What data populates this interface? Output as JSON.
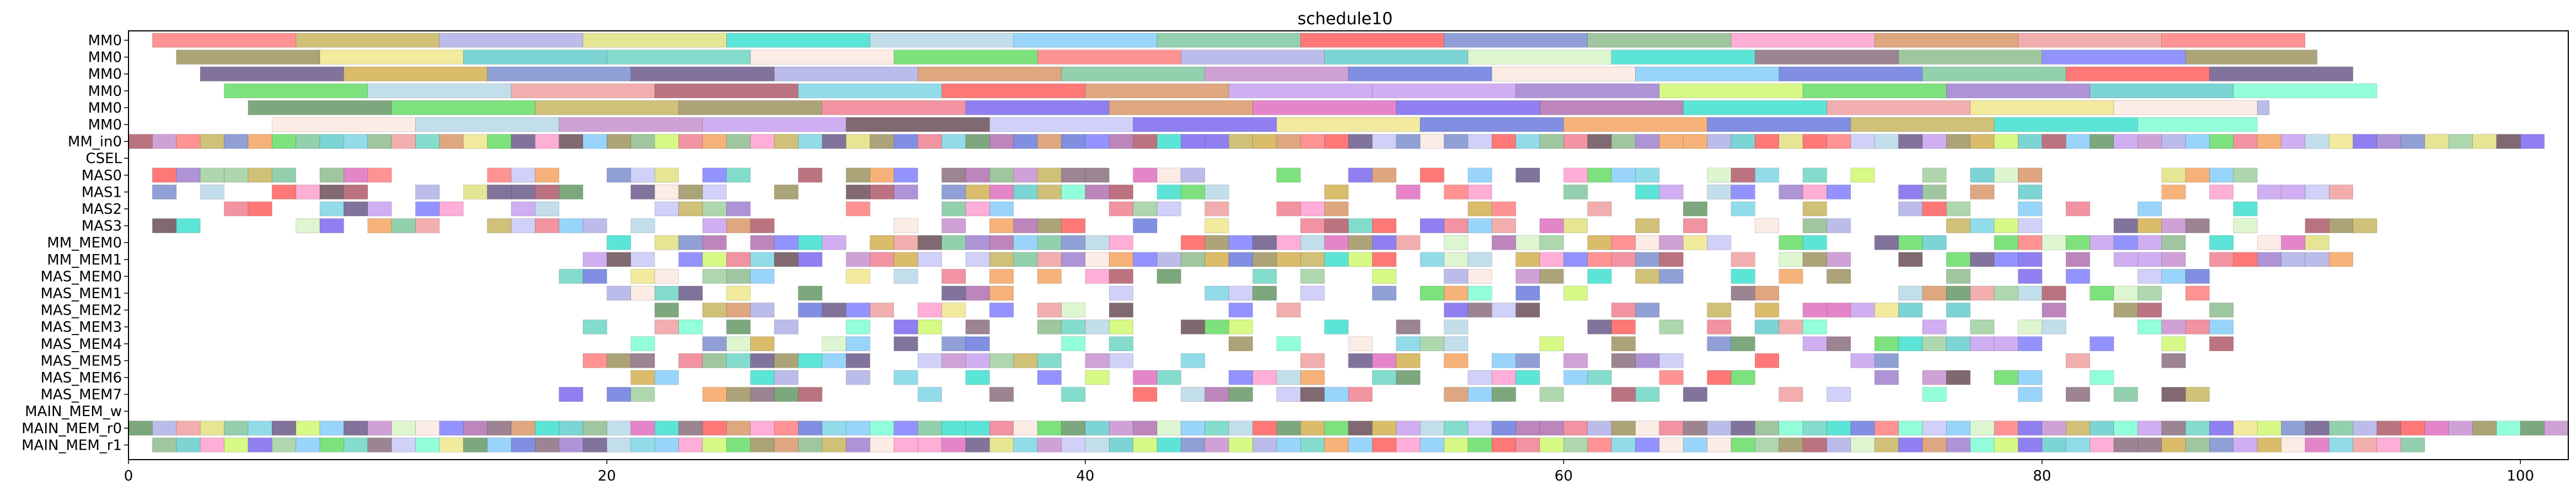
{
  "chart_data": {
    "type": "gantt",
    "title": "schedule10",
    "xlabel": "",
    "ylabel": "",
    "xlim": [
      0,
      102
    ],
    "x_ticks": [
      0,
      20,
      40,
      60,
      80,
      100
    ],
    "x_tick_labels": [
      "0",
      "20",
      "40",
      "60",
      "80",
      "100"
    ],
    "rows": [
      "MM0",
      "MM0",
      "MM0",
      "MM0",
      "MM0",
      "MM0",
      "MM_in0",
      "CSEL",
      "MAS0",
      "MAS1",
      "MAS2",
      "MAS3",
      "MM_MEM0",
      "MM_MEM1",
      "MAS_MEM0",
      "MAS_MEM1",
      "MAS_MEM2",
      "MAS_MEM3",
      "MAS_MEM4",
      "MAS_MEM5",
      "MAS_MEM6",
      "MAS_MEM7",
      "MAIN_MEM_w",
      "MAIN_MEM_r0",
      "MAIN_MEM_r1"
    ],
    "grid": false,
    "legend": "none"
  },
  "colors": {
    "palette": [
      "#f0e68c",
      "#8fbc8f",
      "#c8b560",
      "#6fd6c4",
      "#d8f5c8",
      "#b05a6a",
      "#9e9460",
      "#6b4f58",
      "#7fd6e6",
      "#fde8e0",
      "#c8c8f8",
      "#40e0d0",
      "#d0f870",
      "#c890d0",
      "#7c8fd0",
      "#d89868",
      "#f08090",
      "#f0a0a0",
      "#8b6f80",
      "#80c8a0",
      "#e070c0",
      "#b0b0e8",
      "#7fffd4",
      "#f4a460",
      "#7b68ee",
      "#ff8080",
      "#66dd66",
      "#87cefa",
      "#6a7bdd",
      "#b8d8e8",
      "#66cccc",
      "#669966",
      "#a080d0",
      "#6b5b8b",
      "#ffa0d0",
      "#d4b050",
      "#b070b0",
      "#e0e080",
      "#8080ff",
      "#c8a0f0",
      "#a0d0a0",
      "#ff6060"
    ]
  }
}
